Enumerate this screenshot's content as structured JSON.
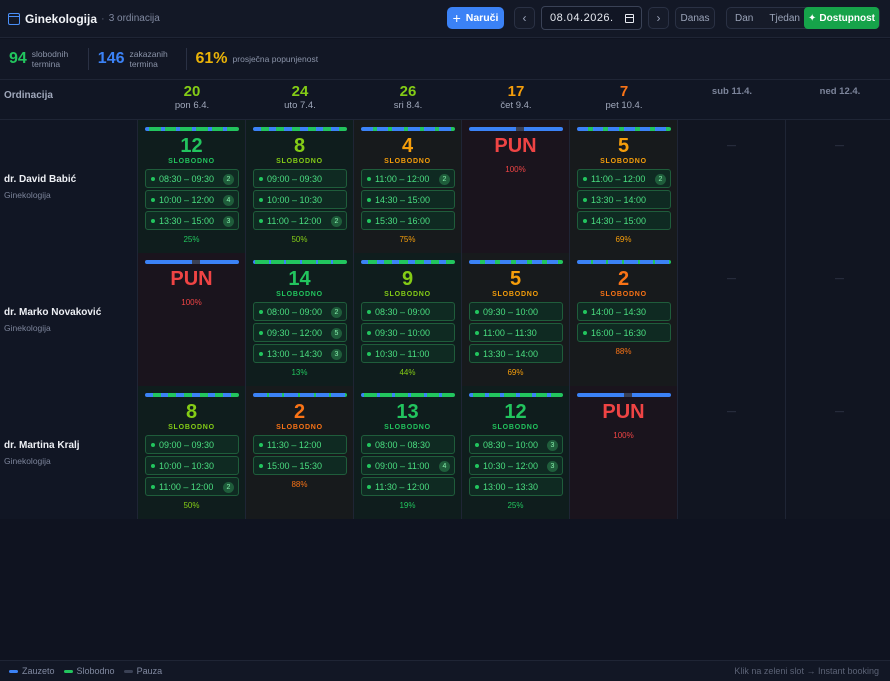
{
  "header": {
    "title": "Ginekologija",
    "subtitle": "3 ordinacija",
    "book_label": "Naruči",
    "prev_label": "‹",
    "next_label": "›",
    "date": "08.04.2026.",
    "today_label": "Danas",
    "view_day": "Dan",
    "view_week": "Tjedan",
    "available_label": "Dostupnost"
  },
  "stats": [
    {
      "value": "94",
      "label": "slobodnih termina",
      "color": "#22c55e"
    },
    {
      "value": "146",
      "label": "zakazanih termina",
      "color": "#3b82f6"
    },
    {
      "value": "61%",
      "label": "prosječna popunjenost",
      "color": "#eab308"
    }
  ],
  "grid": {
    "first_col": "Ordinacija",
    "days": [
      {
        "count": "20",
        "name": "pon 6.4.",
        "color": "#84cc16"
      },
      {
        "count": "24",
        "name": "uto 7.4.",
        "color": "#84cc16"
      },
      {
        "count": "26",
        "name": "sri 8.4.",
        "color": "#84cc16"
      },
      {
        "count": "17",
        "name": "čet 9.4.",
        "color": "#f59e0b"
      },
      {
        "count": "7",
        "name": "pet 10.4.",
        "color": "#f97316"
      },
      {
        "count": "",
        "name": "sub 11.4.",
        "color": "#7c849a"
      },
      {
        "count": "",
        "name": "ned 12.4.",
        "color": "#7c849a"
      }
    ]
  },
  "doctors": [
    {
      "name": "dr. David Babić",
      "spec": "Ginekologija",
      "cells": [
        {
          "type": "free",
          "big": "12",
          "label": "SLOBODNO",
          "color": "#22c55e",
          "pct": "25%",
          "pct_value": 25,
          "slots": [
            {
              "t": "08:30 – 09:30",
              "c": "2"
            },
            {
              "t": "10:00 – 12:00",
              "c": "4"
            },
            {
              "t": "13:30 – 15:00",
              "c": "3"
            }
          ]
        },
        {
          "type": "free",
          "big": "8",
          "label": "SLOBODNO",
          "color": "#84cc16",
          "pct": "50%",
          "pct_value": 50,
          "slots": [
            {
              "t": "09:00 – 09:30",
              "c": ""
            },
            {
              "t": "10:00 – 10:30",
              "c": ""
            },
            {
              "t": "11:00 – 12:00",
              "c": "2"
            }
          ]
        },
        {
          "type": "warn",
          "big": "4",
          "label": "SLOBODNO",
          "color": "#f59e0b",
          "pct": "75%",
          "pct_value": 75,
          "slots": [
            {
              "t": "11:00 – 12:00",
              "c": "2"
            },
            {
              "t": "14:30 – 15:00",
              "c": ""
            },
            {
              "t": "15:30 – 16:00",
              "c": ""
            }
          ]
        },
        {
          "type": "full",
          "big": "PUN",
          "label": "",
          "color": "#ef4444",
          "pct": "100%",
          "pct_value": 100,
          "slots": []
        },
        {
          "type": "warn",
          "big": "5",
          "label": "SLOBODNO",
          "color": "#f59e0b",
          "pct": "69%",
          "pct_value": 69,
          "slots": [
            {
              "t": "11:00 – 12:00",
              "c": "2"
            },
            {
              "t": "13:30 – 14:00",
              "c": ""
            },
            {
              "t": "14:30 – 15:00",
              "c": ""
            }
          ]
        },
        {
          "type": "off",
          "dash": "—"
        },
        {
          "type": "off",
          "dash": "—"
        }
      ]
    },
    {
      "name": "dr. Marko Novaković",
      "spec": "Ginekologija",
      "cells": [
        {
          "type": "full",
          "big": "PUN",
          "label": "",
          "color": "#ef4444",
          "pct": "100%",
          "pct_value": 100,
          "slots": []
        },
        {
          "type": "free",
          "big": "14",
          "label": "SLOBODNO",
          "color": "#22c55e",
          "pct": "13%",
          "pct_value": 13,
          "slots": [
            {
              "t": "08:00 – 09:00",
              "c": "2"
            },
            {
              "t": "09:30 – 12:00",
              "c": "5"
            },
            {
              "t": "13:00 – 14:30",
              "c": "3"
            }
          ]
        },
        {
          "type": "free",
          "big": "9",
          "label": "SLOBODNO",
          "color": "#84cc16",
          "pct": "44%",
          "pct_value": 44,
          "slots": [
            {
              "t": "08:30 – 09:00",
              "c": ""
            },
            {
              "t": "09:30 – 10:00",
              "c": ""
            },
            {
              "t": "10:30 – 11:00",
              "c": ""
            }
          ]
        },
        {
          "type": "warn",
          "big": "5",
          "label": "SLOBODNO",
          "color": "#f59e0b",
          "pct": "69%",
          "pct_value": 69,
          "slots": [
            {
              "t": "09:30 – 10:00",
              "c": ""
            },
            {
              "t": "11:00 – 11:30",
              "c": ""
            },
            {
              "t": "13:30 – 14:00",
              "c": ""
            }
          ]
        },
        {
          "type": "warn",
          "big": "2",
          "label": "SLOBODNO",
          "color": "#f97316",
          "pct": "88%",
          "pct_value": 88,
          "slots": [
            {
              "t": "14:00 – 14:30",
              "c": ""
            },
            {
              "t": "16:00 – 16:30",
              "c": ""
            }
          ]
        },
        {
          "type": "off",
          "dash": "—"
        },
        {
          "type": "off",
          "dash": "—"
        }
      ]
    },
    {
      "name": "dr. Martina Kralj",
      "spec": "Ginekologija",
      "cells": [
        {
          "type": "free",
          "big": "8",
          "label": "SLOBODNO",
          "color": "#84cc16",
          "pct": "50%",
          "pct_value": 50,
          "slots": [
            {
              "t": "09:00 – 09:30",
              "c": ""
            },
            {
              "t": "10:00 – 10:30",
              "c": ""
            },
            {
              "t": "11:00 – 12:00",
              "c": "2"
            }
          ]
        },
        {
          "type": "warn",
          "big": "2",
          "label": "SLOBODNO",
          "color": "#f97316",
          "pct": "88%",
          "pct_value": 88,
          "slots": [
            {
              "t": "11:30 – 12:00",
              "c": ""
            },
            {
              "t": "15:00 – 15:30",
              "c": ""
            }
          ]
        },
        {
          "type": "free",
          "big": "13",
          "label": "SLOBODNO",
          "color": "#22c55e",
          "pct": "19%",
          "pct_value": 19,
          "slots": [
            {
              "t": "08:00 – 08:30",
              "c": ""
            },
            {
              "t": "09:00 – 11:00",
              "c": "4"
            },
            {
              "t": "11:30 – 12:00",
              "c": ""
            }
          ]
        },
        {
          "type": "free",
          "big": "12",
          "label": "SLOBODNO",
          "color": "#22c55e",
          "pct": "25%",
          "pct_value": 25,
          "slots": [
            {
              "t": "08:30 – 10:00",
              "c": "3"
            },
            {
              "t": "10:30 – 12:00",
              "c": "3"
            },
            {
              "t": "13:00 – 13:30",
              "c": ""
            }
          ]
        },
        {
          "type": "full",
          "big": "PUN",
          "label": "",
          "color": "#ef4444",
          "pct": "100%",
          "pct_value": 100,
          "slots": []
        },
        {
          "type": "off",
          "dash": "—"
        },
        {
          "type": "off",
          "dash": "—"
        }
      ]
    }
  ],
  "footer": {
    "legend": [
      {
        "label": "Zauzeto",
        "color": "#3b82f6"
      },
      {
        "label": "Slobodno",
        "color": "#22c55e"
      },
      {
        "label": "Pauza",
        "color": "#3a4155"
      }
    ],
    "hint": "Klik na zeleni slot → Instant booking"
  }
}
